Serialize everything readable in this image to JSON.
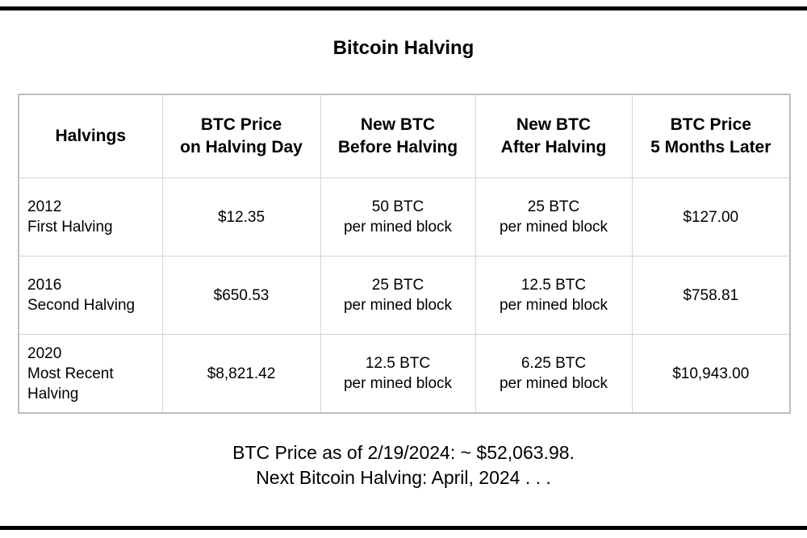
{
  "title": "Bitcoin Halving",
  "table": {
    "headers": [
      [
        "Halvings"
      ],
      [
        "BTC Price",
        "on Halving Day"
      ],
      [
        "New BTC",
        "Before Halving"
      ],
      [
        "New BTC",
        "After Halving"
      ],
      [
        "BTC Price",
        "5 Months Later"
      ]
    ],
    "rows": [
      {
        "halving": [
          "2012",
          "First Halving"
        ],
        "price_on_day": "$12.35",
        "before": [
          "50 BTC",
          "per mined block"
        ],
        "after": [
          "25 BTC",
          "per mined block"
        ],
        "price_later": "$127.00"
      },
      {
        "halving": [
          "2016",
          "Second Halving"
        ],
        "price_on_day": "$650.53",
        "before": [
          "25 BTC",
          "per mined block"
        ],
        "after": [
          "12.5 BTC",
          "per mined block"
        ],
        "price_later": "$758.81"
      },
      {
        "halving": [
          "2020",
          "Most Recent",
          "Halving"
        ],
        "price_on_day": "$8,821.42",
        "before": [
          "12.5 BTC",
          "per mined block"
        ],
        "after": [
          "6.25 BTC",
          "per mined block"
        ],
        "price_later": "$10,943.00"
      }
    ]
  },
  "footer": {
    "line1": "BTC Price as of 2/19/2024: ~ $52,063.98.",
    "line2": "Next Bitcoin Halving: April, 2024 . . ."
  }
}
